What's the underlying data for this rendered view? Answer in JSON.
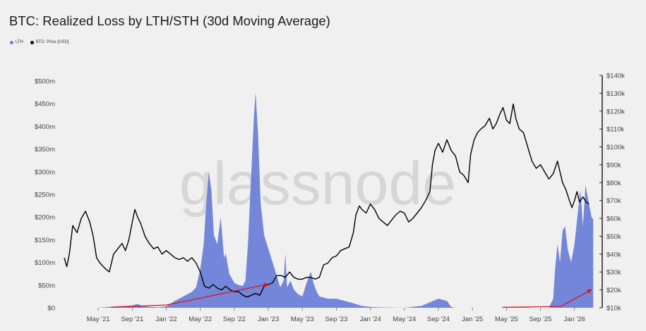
{
  "title": "BTC: Realized Loss by LTH/STH (30d Moving Average)",
  "watermark": "glassnode",
  "legend": [
    {
      "label": "LTH",
      "color": "#6b7fd7"
    },
    {
      "label": "BTC: Price [USD]",
      "color": "#000000"
    }
  ],
  "chart_data": {
    "type": "area",
    "x_tick_labels": [
      "May '21",
      "Sep '21",
      "Jan '22",
      "May '22",
      "Sep '22",
      "Jan '23",
      "May '23",
      "Sep '23",
      "Jan '24",
      "May '24",
      "Sep '24",
      "Jan '25",
      "May '25",
      "Sep '25",
      "Jan '26"
    ],
    "y_left_ticks": [
      "$0",
      "$50m",
      "$100m",
      "$150m",
      "$200m",
      "$250m",
      "$300m",
      "$350m",
      "$400m",
      "$450m",
      "$500m"
    ],
    "y_right_ticks": [
      "$10k",
      "$20k",
      "$30k",
      "$40k",
      "$50k",
      "$60k",
      "$70k",
      "$80k",
      "$90k",
      "$100k",
      "$110k",
      "$120k",
      "$130k",
      "$140k"
    ],
    "y_left_range": [
      0,
      500
    ],
    "y_left_unit": "m",
    "y_right_range": [
      10,
      140
    ],
    "y_right_unit": "k",
    "x_unit": "months since Jan 2021",
    "series": [
      {
        "name": "LTH",
        "type": "area",
        "axis": "left",
        "color": "#6b7fd7",
        "points": [
          [
            0,
            0
          ],
          [
            4,
            0
          ],
          [
            6,
            3
          ],
          [
            8,
            5
          ],
          [
            8.6,
            8
          ],
          [
            9.2,
            4
          ],
          [
            10,
            2
          ],
          [
            11,
            1
          ],
          [
            12,
            3
          ],
          [
            13,
            15
          ],
          [
            14,
            25
          ],
          [
            15,
            35
          ],
          [
            15.5,
            45
          ],
          [
            16,
            85
          ],
          [
            16.4,
            140
          ],
          [
            16.7,
            230
          ],
          [
            17,
            300
          ],
          [
            17.3,
            260
          ],
          [
            17.6,
            160
          ],
          [
            18,
            140
          ],
          [
            18.4,
            200
          ],
          [
            18.8,
            110
          ],
          [
            19,
            120
          ],
          [
            19.4,
            75
          ],
          [
            20,
            55
          ],
          [
            20.5,
            50
          ],
          [
            21,
            48
          ],
          [
            21.3,
            60
          ],
          [
            21.6,
            140
          ],
          [
            22,
            300
          ],
          [
            22.3,
            420
          ],
          [
            22.5,
            475
          ],
          [
            22.8,
            380
          ],
          [
            23.1,
            230
          ],
          [
            23.5,
            160
          ],
          [
            24,
            130
          ],
          [
            24.5,
            100
          ],
          [
            25,
            70
          ],
          [
            25.4,
            45
          ],
          [
            25.8,
            60
          ],
          [
            26,
            120
          ],
          [
            26.2,
            45
          ],
          [
            26.6,
            60
          ],
          [
            27,
            40
          ],
          [
            27.5,
            30
          ],
          [
            28,
            25
          ],
          [
            28.5,
            55
          ],
          [
            29,
            80
          ],
          [
            29.3,
            55
          ],
          [
            29.7,
            35
          ],
          [
            30,
            25
          ],
          [
            31,
            20
          ],
          [
            32,
            20
          ],
          [
            33,
            15
          ],
          [
            34,
            10
          ],
          [
            35,
            4
          ],
          [
            36,
            2
          ],
          [
            37,
            1
          ],
          [
            40,
            0
          ],
          [
            42,
            4
          ],
          [
            43,
            12
          ],
          [
            44,
            20
          ],
          [
            45,
            15
          ],
          [
            45.5,
            2
          ],
          [
            46,
            0
          ],
          [
            52,
            0
          ],
          [
            53,
            2
          ],
          [
            54,
            2
          ],
          [
            55,
            0
          ],
          [
            57,
            0
          ],
          [
            57.5,
            20
          ],
          [
            57.7,
            80
          ],
          [
            58,
            140
          ],
          [
            58.3,
            100
          ],
          [
            58.6,
            170
          ],
          [
            58.9,
            180
          ],
          [
            59.2,
            130
          ],
          [
            59.6,
            100
          ],
          [
            60,
            140
          ],
          [
            60.4,
            210
          ],
          [
            60.7,
            260
          ],
          [
            61,
            180
          ],
          [
            61.3,
            270
          ],
          [
            61.6,
            240
          ],
          [
            62,
            200
          ],
          [
            62.2,
            195
          ]
        ]
      },
      {
        "name": "BTC: Price [USD]",
        "type": "line",
        "axis": "right",
        "color": "#000000",
        "points": [
          [
            0,
            38
          ],
          [
            0.3,
            33
          ],
          [
            0.6,
            40
          ],
          [
            1,
            56
          ],
          [
            1.5,
            52
          ],
          [
            2,
            60
          ],
          [
            2.5,
            64
          ],
          [
            3,
            58
          ],
          [
            3.4,
            50
          ],
          [
            3.8,
            38
          ],
          [
            4.2,
            35
          ],
          [
            4.8,
            32
          ],
          [
            5.3,
            30
          ],
          [
            5.8,
            40
          ],
          [
            6.3,
            43
          ],
          [
            6.8,
            46
          ],
          [
            7.2,
            42
          ],
          [
            7.6,
            48
          ],
          [
            8,
            58
          ],
          [
            8.3,
            65
          ],
          [
            8.6,
            61
          ],
          [
            9,
            57
          ],
          [
            9.5,
            50
          ],
          [
            10,
            46
          ],
          [
            10.5,
            43
          ],
          [
            11,
            44
          ],
          [
            11.5,
            40
          ],
          [
            12,
            42
          ],
          [
            12.5,
            40
          ],
          [
            13,
            38
          ],
          [
            13.5,
            37
          ],
          [
            14,
            38
          ],
          [
            14.5,
            36
          ],
          [
            15,
            38
          ],
          [
            15.5,
            35
          ],
          [
            16,
            30
          ],
          [
            16.5,
            22
          ],
          [
            17,
            21
          ],
          [
            17.5,
            23
          ],
          [
            18,
            21
          ],
          [
            18.5,
            20
          ],
          [
            19,
            22
          ],
          [
            19.5,
            20
          ],
          [
            20,
            19
          ],
          [
            20.5,
            19
          ],
          [
            21,
            17
          ],
          [
            21.5,
            16
          ],
          [
            22,
            17
          ],
          [
            22.5,
            18
          ],
          [
            23,
            17
          ],
          [
            23.5,
            22
          ],
          [
            24,
            23
          ],
          [
            24.5,
            24
          ],
          [
            25,
            28
          ],
          [
            25.5,
            28
          ],
          [
            26,
            27
          ],
          [
            26.5,
            30
          ],
          [
            27,
            27
          ],
          [
            27.5,
            26
          ],
          [
            28,
            26
          ],
          [
            28.5,
            27
          ],
          [
            29,
            27
          ],
          [
            29.5,
            26
          ],
          [
            30,
            27
          ],
          [
            30.5,
            34
          ],
          [
            31,
            35
          ],
          [
            31.5,
            38
          ],
          [
            32,
            39
          ],
          [
            32.5,
            42
          ],
          [
            33,
            43
          ],
          [
            33.5,
            44
          ],
          [
            34,
            52
          ],
          [
            34.3,
            62
          ],
          [
            34.7,
            67
          ],
          [
            35,
            65
          ],
          [
            35.5,
            63
          ],
          [
            36,
            68
          ],
          [
            36.5,
            65
          ],
          [
            37,
            60
          ],
          [
            37.5,
            58
          ],
          [
            38,
            56
          ],
          [
            38.5,
            59
          ],
          [
            39,
            62
          ],
          [
            39.5,
            64
          ],
          [
            40,
            63
          ],
          [
            40.5,
            58
          ],
          [
            41,
            60
          ],
          [
            41.5,
            63
          ],
          [
            42,
            66
          ],
          [
            42.5,
            70
          ],
          [
            43,
            75
          ],
          [
            43.3,
            90
          ],
          [
            43.6,
            98
          ],
          [
            44,
            102
          ],
          [
            44.5,
            97
          ],
          [
            45,
            104
          ],
          [
            45.5,
            98
          ],
          [
            46,
            95
          ],
          [
            46.5,
            86
          ],
          [
            47,
            84
          ],
          [
            47.5,
            80
          ],
          [
            47.8,
            96
          ],
          [
            48.2,
            104
          ],
          [
            48.6,
            108
          ],
          [
            49,
            110
          ],
          [
            49.5,
            112
          ],
          [
            50,
            116
          ],
          [
            50.4,
            110
          ],
          [
            50.8,
            113
          ],
          [
            51.2,
            118
          ],
          [
            51.6,
            122
          ],
          [
            52,
            115
          ],
          [
            52.4,
            113
          ],
          [
            52.8,
            124
          ],
          [
            53.1,
            116
          ],
          [
            53.5,
            110
          ],
          [
            54,
            108
          ],
          [
            54.5,
            100
          ],
          [
            55,
            92
          ],
          [
            55.5,
            88
          ],
          [
            56,
            90
          ],
          [
            56.5,
            86
          ],
          [
            57,
            82
          ],
          [
            57.5,
            85
          ],
          [
            58,
            92
          ],
          [
            58.3,
            86
          ],
          [
            58.6,
            80
          ],
          [
            59,
            76
          ],
          [
            59.4,
            70
          ],
          [
            59.7,
            66
          ],
          [
            60,
            70
          ],
          [
            60.3,
            75
          ],
          [
            60.6,
            69
          ],
          [
            61,
            72
          ],
          [
            61.4,
            69
          ],
          [
            61.7,
            68
          ]
        ]
      }
    ],
    "annotations": [
      {
        "type": "arrow",
        "color": "#e01010",
        "from": [
          5.5,
          1
        ],
        "to": [
          12,
          6
        ],
        "axis": "left"
      },
      {
        "type": "arrow",
        "color": "#e01010",
        "from": [
          12,
          6
        ],
        "to": [
          24,
          52
        ],
        "axis": "left"
      },
      {
        "type": "arrow",
        "color": "#e01010",
        "from": [
          51.5,
          1
        ],
        "to": [
          58.4,
          3
        ],
        "axis": "left"
      },
      {
        "type": "arrow",
        "color": "#e01010",
        "from": [
          58.4,
          3
        ],
        "to": [
          62,
          40
        ],
        "axis": "left"
      }
    ]
  }
}
